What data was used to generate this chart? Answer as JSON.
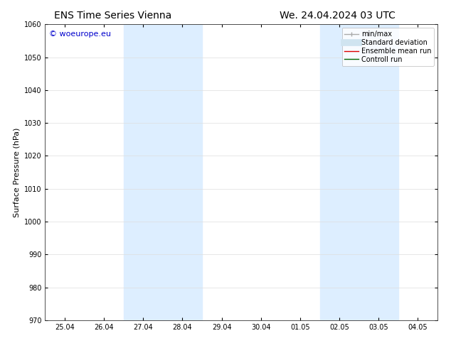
{
  "title_left": "ENS Time Series Vienna",
  "title_right": "We. 24.04.2024 03 UTC",
  "ylabel": "Surface Pressure (hPa)",
  "ylim": [
    970,
    1060
  ],
  "yticks": [
    970,
    980,
    990,
    1000,
    1010,
    1020,
    1030,
    1040,
    1050,
    1060
  ],
  "xtick_labels": [
    "25.04",
    "26.04",
    "27.04",
    "28.04",
    "29.04",
    "30.04",
    "01.05",
    "02.05",
    "03.05",
    "04.05"
  ],
  "xtick_positions": [
    1,
    2,
    3,
    4,
    5,
    6,
    7,
    8,
    9,
    10
  ],
  "xlim": [
    0.5,
    10.5
  ],
  "shaded_bands": [
    {
      "x_start": 2.5,
      "x_end": 4.5,
      "color": "#ddeeff"
    },
    {
      "x_start": 7.5,
      "x_end": 9.5,
      "color": "#ddeeff"
    }
  ],
  "watermark": "© woeurope.eu",
  "watermark_color": "#0000cc",
  "legend_items": [
    {
      "label": "min/max",
      "color": "#aaaaaa",
      "lw": 1.0
    },
    {
      "label": "Standard deviation",
      "color": "#d0e4f0",
      "lw": 7
    },
    {
      "label": "Ensemble mean run",
      "color": "#dd0000",
      "lw": 1.0
    },
    {
      "label": "Controll run",
      "color": "#006600",
      "lw": 1.0
    }
  ],
  "bg_color": "#ffffff",
  "title_fontsize": 10,
  "ylabel_fontsize": 8,
  "tick_fontsize": 7,
  "watermark_fontsize": 8,
  "legend_fontsize": 7
}
